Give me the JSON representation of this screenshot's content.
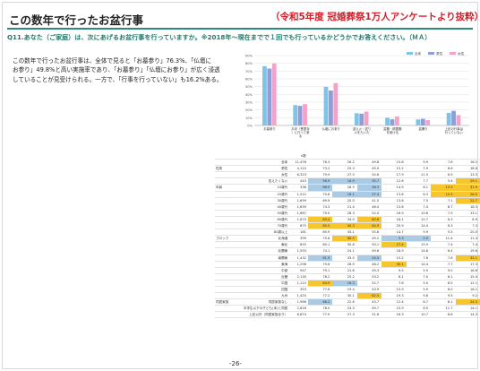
{
  "page": {
    "title": "この数年で行ったお盆行事",
    "subtitle": "（令和5年度 冠婚葬祭1万人アンケートより抜粋）",
    "question": "Q11.あなた（ご家庭）は、次にあげるお盆行事を行っていますか。※2018年～現在までで１回でも行っているかどうかでお答えください。（ＭＡ）",
    "body_lines": [
      "この数年で行ったお盆行事は、全体で見ると「お墓参り」76.3%、「仏壇に",
      "お参り」49.8%と高い実施率であり、「お墓参り」「仏壇にお参り」が広く浸透",
      "していることが見受けられる。一方で、「行事を行っていない」も16.2%ある。"
    ],
    "page_number": "-26-",
    "colors": {
      "accent": "#1f7a6a",
      "subtitle": "#d0202a",
      "all": "#7fc3e8",
      "male": "#8d9fd9",
      "female": "#f4a3c8",
      "up": "#f7c52c",
      "down": "#a9cbe6"
    }
  },
  "chart_data": {
    "type": "bar",
    "categories": [
      "お墓参り",
      "お寺（菩提寺）に行って参る",
      "仏壇にお参り",
      "迎え火・送り火をたいた",
      "盆棚・精霊棚を設ける",
      "盆踊り",
      "上記の行事は行っていない"
    ],
    "series": [
      {
        "name": "全体",
        "values": [
          76.3,
          26.2,
          49.8,
          15.8,
          9.9,
          7.8,
          16.2
        ]
      },
      {
        "name": "男性",
        "values": [
          73.2,
          25.3,
          45.0,
          15.2,
          7.9,
          8.6,
          18.8
        ]
      },
      {
        "name": "女性",
        "values": [
          79.9,
          27.5,
          54.6,
          17.9,
          11.5,
          6.9,
          13.3
        ]
      }
    ],
    "ylim": [
      0,
      90
    ],
    "yticks": [
      0,
      10,
      20,
      30,
      40,
      50,
      60,
      70,
      80,
      90
    ],
    "ytick_unit": "%",
    "legend": [
      "全体",
      "男性",
      "女性"
    ],
    "legend_position": "top-right",
    "grid": true
  },
  "table": {
    "n_header": "n数",
    "rows": [
      {
        "g": "",
        "l": "全体",
        "n": "11,476",
        "v": [
          "76.3",
          "26.2",
          "49.8",
          "15.8",
          "9.9",
          "7.8",
          "16.2"
        ],
        "h": [
          0,
          0,
          0,
          0,
          0,
          0,
          0
        ]
      },
      {
        "g": "性別",
        "l": "男性",
        "n": "4,110",
        "v": [
          "73.2",
          "25.3",
          "45.0",
          "15.2",
          "7.9",
          "8.6",
          "18.8"
        ],
        "h": [
          0,
          0,
          0,
          0,
          0,
          0,
          0
        ]
      },
      {
        "g": "",
        "l": "女性",
        "n": "6,323",
        "v": [
          "79.9",
          "27.5",
          "54.6",
          "17.9",
          "11.5",
          "6.9",
          "13.3"
        ],
        "h": [
          0,
          0,
          0,
          0,
          0,
          0,
          0
        ]
      },
      {
        "g": "",
        "l": "答えたくない",
        "n": "443",
        "v": [
          "56.9",
          "16.9",
          "35.7",
          "12.6",
          "7.7",
          "5.4",
          "29.1"
        ],
        "h": [
          -1,
          -1,
          -1,
          0,
          0,
          0,
          1
        ]
      },
      {
        "g": "年齢",
        "l": "10歳代",
        "n": "338",
        "v": [
          "66.9",
          "26.5",
          "38.3",
          "14.9",
          "6.1",
          "13.3",
          "31.9"
        ],
        "h": [
          -1,
          0,
          -1,
          0,
          0,
          1,
          1
        ]
      },
      {
        "g": "",
        "l": "20歳代",
        "n": "1,512",
        "v": [
          "70.6",
          "18.1",
          "37.4",
          "13.6",
          "6.3",
          "12.5",
          "26.0"
        ],
        "h": [
          0,
          -1,
          -1,
          0,
          0,
          1,
          1
        ]
      },
      {
        "g": "",
        "l": "30歳代",
        "n": "1,699",
        "v": [
          "69.9",
          "20.0",
          "41.0",
          "13.6",
          "7.5",
          "7.1",
          "22.7"
        ],
        "h": [
          0,
          0,
          0,
          0,
          0,
          0,
          1
        ]
      },
      {
        "g": "",
        "l": "40歳代",
        "n": "1,639",
        "v": [
          "74.3",
          "21.4",
          "46.4",
          "13.6",
          "7.4",
          "8.7",
          "18.3"
        ],
        "h": [
          0,
          0,
          0,
          0,
          0,
          0,
          0
        ]
      },
      {
        "g": "",
        "l": "50歳代",
        "n": "1,687",
        "v": [
          "79.0",
          "28.3",
          "52.0",
          "16.9",
          "10.6",
          "7.5",
          "13.1"
        ],
        "h": [
          0,
          0,
          0,
          0,
          0,
          0,
          0
        ]
      },
      {
        "g": "",
        "l": "60歳代",
        "n": "1,670",
        "v": [
          "83.4",
          "34.0",
          "60.6",
          "18.1",
          "10.7",
          "6.3",
          "8.9"
        ],
        "h": [
          1,
          0,
          1,
          0,
          0,
          0,
          0
        ]
      },
      {
        "g": "",
        "l": "70歳代",
        "n": "675",
        "v": [
          "85.0",
          "40.3",
          "64.9",
          "20.9",
          "14.4",
          "6.3",
          "7.3"
        ],
        "h": [
          1,
          1,
          1,
          0,
          0,
          0,
          0
        ]
      },
      {
        "g": "",
        "l": "80歳以上",
        "n": "181",
        "v": [
          "80.9",
          "35.1",
          "55.8",
          "14.7",
          "9.9",
          "5.5",
          "20.0"
        ],
        "h": [
          0,
          0,
          0,
          0,
          0,
          0,
          0
        ]
      },
      {
        "g": "ブロック",
        "l": "北海道",
        "n": "399",
        "v": [
          "75.6",
          "66.5",
          "49.2",
          "5.3",
          "2.0",
          "11.4",
          "11.4"
        ],
        "h": [
          0,
          1,
          0,
          -1,
          -1,
          0,
          0
        ]
      },
      {
        "g": "",
        "l": "東北",
        "n": "855",
        "v": [
          "80.1",
          "30.8",
          "50.1",
          "27.4",
          "15.9",
          "7.4",
          "7.4"
        ],
        "h": [
          0,
          0,
          0,
          1,
          0,
          0,
          0
        ]
      },
      {
        "g": "",
        "l": "北関東",
        "n": "1,593",
        "v": [
          "74.1",
          "24.1",
          "49.6",
          "18.9",
          "14.8",
          "6.4",
          "19.6"
        ],
        "h": [
          0,
          0,
          0,
          0,
          0,
          0,
          0
        ]
      },
      {
        "g": "",
        "l": "南関東",
        "n": "1,432",
        "v": [
          "61.9",
          "33.5",
          "24.4",
          "15.2",
          "7.6",
          "7.6",
          "32.1"
        ],
        "h": [
          -1,
          0,
          -1,
          0,
          0,
          0,
          1
        ]
      },
      {
        "g": "",
        "l": "東海",
        "n": "1,298",
        "v": [
          "75.6",
          "28.9",
          "48.2",
          "30.1",
          "14.4",
          "7.7",
          "17.3"
        ],
        "h": [
          0,
          0,
          0,
          1,
          0,
          0,
          0
        ]
      },
      {
        "g": "",
        "l": "中部",
        "n": "947",
        "v": [
          "79.1",
          "21.6",
          "49.3",
          "9.5",
          "5.9",
          "9.0",
          "16.6"
        ],
        "h": [
          0,
          0,
          0,
          0,
          0,
          0,
          0
        ]
      },
      {
        "g": "",
        "l": "近畿",
        "n": "2,130",
        "v": [
          "76.2",
          "25.2",
          "53.2",
          "8.1",
          "7.0",
          "6.1",
          "15.0"
        ],
        "h": [
          0,
          0,
          0,
          0,
          0,
          0,
          0
        ]
      },
      {
        "g": "",
        "l": "中国",
        "n": "1,110",
        "v": [
          "84.9",
          "16.3",
          "52.7",
          "7.8",
          "5.0",
          "6.5",
          "12.1"
        ],
        "h": [
          1,
          -1,
          0,
          0,
          0,
          0,
          0
        ]
      },
      {
        "g": "",
        "l": "四国",
        "n": "353",
        "v": [
          "77.6",
          "19.4",
          "43.9",
          "15.9",
          "5.9",
          "8.0",
          "16.1"
        ],
        "h": [
          0,
          0,
          0,
          0,
          0,
          0,
          0
        ]
      },
      {
        "g": "",
        "l": "九州",
        "n": "1,420",
        "v": [
          "77.2",
          "30.1",
          "62.5",
          "19.3",
          "9.8",
          "9.5",
          "9.2"
        ],
        "h": [
          0,
          0,
          1,
          0,
          0,
          0,
          0
        ]
      },
      {
        "g": "同居家族",
        "l": "同居家族なし",
        "n": "1,986",
        "v": [
          "66.2",
          "22.6",
          "43.7",
          "12.4",
          "8.7",
          "8.1",
          "24.3"
        ],
        "h": [
          -1,
          0,
          0,
          0,
          0,
          0,
          1
        ]
      },
      {
        "g": "",
        "l": "中学生以下の子ども(末)と同居",
        "n": "2,616",
        "v": [
          "78.0",
          "24.3",
          "49.7",
          "15.9",
          "8.5",
          "11.7",
          "14.1"
        ],
        "h": [
          0,
          0,
          0,
          0,
          0,
          0,
          0
        ]
      },
      {
        "g": "",
        "l": "上記以外（同居家族あり）",
        "n": "6,874",
        "v": [
          "77.9",
          "27.3",
          "51.6",
          "16.3",
          "10.7",
          "6.8",
          "14.3"
        ],
        "h": [
          0,
          0,
          0,
          0,
          0,
          0,
          0
        ]
      }
    ],
    "legend": [
      "全体比＋10pt以上（黄）",
      "全体比＋5pt以上",
      "全体比－5pt以上",
      "全体比－10pt以上（青）"
    ]
  }
}
